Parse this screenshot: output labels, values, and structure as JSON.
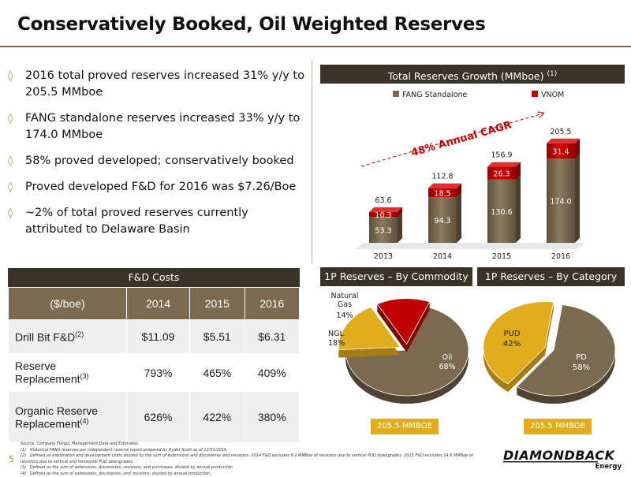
{
  "page": {
    "title": "Conservatively Booked, Oil Weighted Reserves",
    "page_number": "5"
  },
  "bullets": [
    "2016 total proved reserves increased 31% y/y to 205.5 MMboe",
    "FANG standalone reserves increased 33% y/y to 174.0 MMboe",
    "58% proved developed; conservatively booked",
    "Proved developed F&D for 2016 was $7.26/Boe",
    "~2% of total proved reserves currently attributed to Delaware Basin"
  ],
  "colors": {
    "dark_header": "#3a3328",
    "fang_brown": "#7a6a4f",
    "vnom_red": "#c00000",
    "gold": "#e0ad1d",
    "accent": "#b38a2e"
  },
  "fd_table": {
    "title": "F&D Costs",
    "headers": [
      "($/boe)",
      "2014",
      "2015",
      "2016"
    ],
    "rows": [
      {
        "label": "Drill Bit F&D",
        "sup": "(2)",
        "values": [
          "$11.09",
          "$5.51",
          "$6.31"
        ]
      },
      {
        "label": "Reserve Replacement",
        "sup": "(3)",
        "values": [
          "793%",
          "465%",
          "409%"
        ]
      },
      {
        "label": "Organic Reserve Replacement",
        "sup": "(4)",
        "values": [
          "626%",
          "422%",
          "380%"
        ]
      }
    ]
  },
  "chart_data": [
    {
      "type": "bar",
      "title": "Total Reserves Growth (MMboe)",
      "title_sup": "(1)",
      "categories": [
        "2013",
        "2014",
        "2015",
        "2016"
      ],
      "series": [
        {
          "name": "FANG Standalone",
          "values": [
            53.3,
            94.3,
            130.6,
            174.0
          ]
        },
        {
          "name": "VNOM",
          "values": [
            10.3,
            18.5,
            26.3,
            31.4
          ]
        }
      ],
      "totals": [
        63.6,
        112.8,
        156.9,
        205.5
      ],
      "annotation": "48% Annual CAGR",
      "stacked": true,
      "ylim": [
        0,
        220
      ],
      "legend": "top"
    },
    {
      "type": "pie",
      "title": "1P Reserves – By Commodity",
      "slices": [
        {
          "label": "Oil",
          "value": 68,
          "text": "68%"
        },
        {
          "label": "NGL",
          "value": 18,
          "text": "18%"
        },
        {
          "label": "Natural Gas",
          "value": 14,
          "text": "14%"
        }
      ],
      "footer": "205.5 MMBOE"
    },
    {
      "type": "pie",
      "title": "1P Reserves – By Category",
      "slices": [
        {
          "label": "PD",
          "value": 58,
          "text": "58%"
        },
        {
          "label": "PUD",
          "value": 42,
          "text": "42%"
        }
      ],
      "footer": "205.5 MMBOE"
    }
  ],
  "footnotes": [
    "Source: Company Filings, Management Data and Estimates.",
    "(1)   Historical FANG reserves per independent reserve report prepared by Ryder Scott as of 12/31/2016.",
    "(2)   Defined as exploration and development costs divided by the sum of extensions and discoveries and revisions. 2014 F&D excludes 6.2 MMBoe of revisions due to vertical PUD downgrades. 2015 F&D excludes 14.6 MMBoe of revisions due to vertical and horizontal PUD downgrades.",
    "(3)   Defined as the sum of extensions, discoveries, revisions, and purchases, divided by annual production.",
    "(4)   Defined as the sum of extensions, discoveries, and revisions, divided by annual production."
  ],
  "logo": {
    "name": "DIAMONDBACK",
    "sub": "Energy"
  }
}
